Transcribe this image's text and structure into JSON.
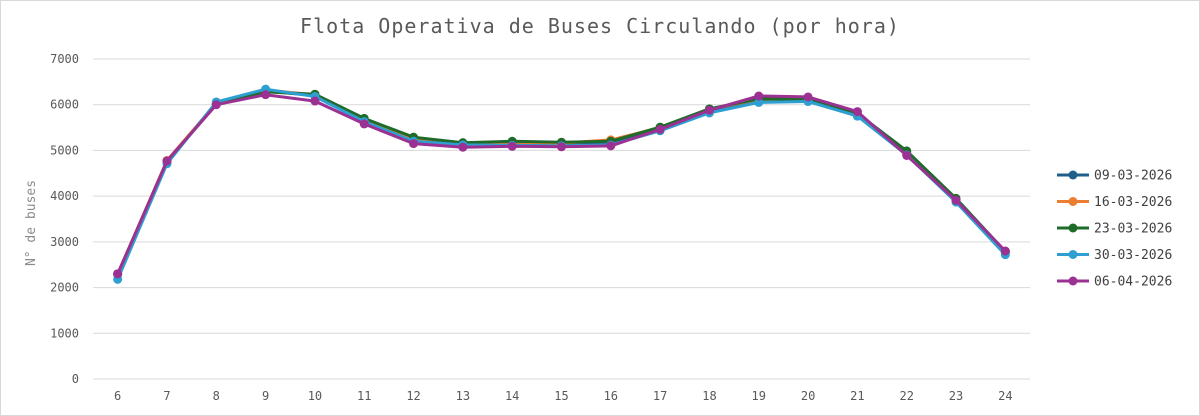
{
  "chart_data": {
    "type": "line",
    "title": "Flota Operativa de Buses Circulando (por hora)",
    "xlabel": "",
    "ylabel": "N° de buses",
    "ylim": [
      0,
      7000
    ],
    "yticks": [
      0,
      1000,
      2000,
      3000,
      4000,
      5000,
      6000,
      7000
    ],
    "grid": true,
    "legend_position": "right",
    "categories": [
      "6",
      "7",
      "8",
      "9",
      "10",
      "11",
      "12",
      "13",
      "14",
      "15",
      "16",
      "17",
      "18",
      "19",
      "20",
      "21",
      "22",
      "23",
      "24"
    ],
    "series": [
      {
        "name": "09-03-2026",
        "color": "#1f5f8b",
        "values": [
          2300,
          4760,
          6020,
          6300,
          6200,
          5660,
          5230,
          5130,
          5150,
          5130,
          5170,
          5480,
          5880,
          6080,
          6080,
          5760,
          4960,
          3920,
          2760
        ]
      },
      {
        "name": "16-03-2026",
        "color": "#ed7d31",
        "values": [
          2300,
          4780,
          6030,
          6320,
          6220,
          5680,
          5260,
          5150,
          5180,
          5160,
          5230,
          5500,
          5900,
          6120,
          6110,
          5790,
          4970,
          3930,
          2780
        ]
      },
      {
        "name": "23-03-2026",
        "color": "#1e6b2a",
        "values": [
          2290,
          4760,
          6010,
          6280,
          6230,
          5700,
          5290,
          5170,
          5200,
          5180,
          5200,
          5510,
          5910,
          6130,
          6120,
          5810,
          4990,
          3950,
          2790
        ]
      },
      {
        "name": "30-03-2026",
        "color": "#2e9fd1",
        "values": [
          2180,
          4710,
          6060,
          6340,
          6180,
          5630,
          5200,
          5120,
          5110,
          5100,
          5120,
          5430,
          5820,
          6050,
          6070,
          5750,
          4900,
          3870,
          2720
        ]
      },
      {
        "name": "06-04-2026",
        "color": "#9b3192",
        "values": [
          2300,
          4770,
          6000,
          6220,
          6080,
          5580,
          5150,
          5070,
          5090,
          5080,
          5100,
          5460,
          5880,
          6190,
          6170,
          5850,
          4890,
          3910,
          2800
        ]
      }
    ]
  }
}
